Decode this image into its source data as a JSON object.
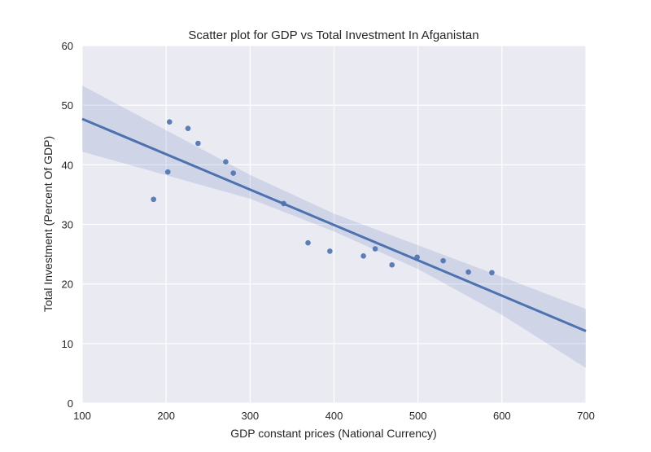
{
  "chart_data": {
    "type": "scatter",
    "title": "Scatter plot for GDP vs Total Investment In Afganistan",
    "xlabel": "GDP constant prices (National Currency)",
    "ylabel": "Total Investment (Percent Of GDP)",
    "xlim": [
      100,
      700
    ],
    "ylim": [
      0,
      60
    ],
    "xticks": [
      "100",
      "200",
      "300",
      "400",
      "500",
      "600",
      "700"
    ],
    "yticks": [
      "0",
      "10",
      "20",
      "30",
      "40",
      "50",
      "60"
    ],
    "grid": true,
    "legend": "none",
    "points": [
      {
        "x": 185,
        "y": 34.2
      },
      {
        "x": 202,
        "y": 38.8
      },
      {
        "x": 204,
        "y": 47.2
      },
      {
        "x": 226,
        "y": 46.1
      },
      {
        "x": 238,
        "y": 43.6
      },
      {
        "x": 271,
        "y": 40.5
      },
      {
        "x": 280,
        "y": 38.6
      },
      {
        "x": 340,
        "y": 33.5
      },
      {
        "x": 369,
        "y": 26.9
      },
      {
        "x": 395,
        "y": 25.5
      },
      {
        "x": 435,
        "y": 24.7
      },
      {
        "x": 449,
        "y": 25.9
      },
      {
        "x": 469,
        "y": 23.2
      },
      {
        "x": 499,
        "y": 24.5
      },
      {
        "x": 530,
        "y": 23.9
      },
      {
        "x": 560,
        "y": 22.0
      },
      {
        "x": 588,
        "y": 21.9
      }
    ],
    "regression": {
      "line": [
        [
          100,
          47.7
        ],
        [
          700,
          12.1
        ]
      ],
      "ci_upper": [
        [
          100,
          53.3
        ],
        [
          300,
          38.3
        ],
        [
          400,
          31.8
        ],
        [
          500,
          26.5
        ],
        [
          600,
          21.2
        ],
        [
          700,
          15.8
        ]
      ],
      "ci_lower": [
        [
          100,
          42.2
        ],
        [
          300,
          34.3
        ],
        [
          400,
          28.8
        ],
        [
          500,
          22.5
        ],
        [
          600,
          14.8
        ],
        [
          700,
          5.9
        ]
      ]
    },
    "colors": {
      "background": "#eaeaf2",
      "grid": "#ffffff",
      "points": "#4c72b0",
      "line": "#4c72b0",
      "band": "#4c72b0"
    }
  }
}
